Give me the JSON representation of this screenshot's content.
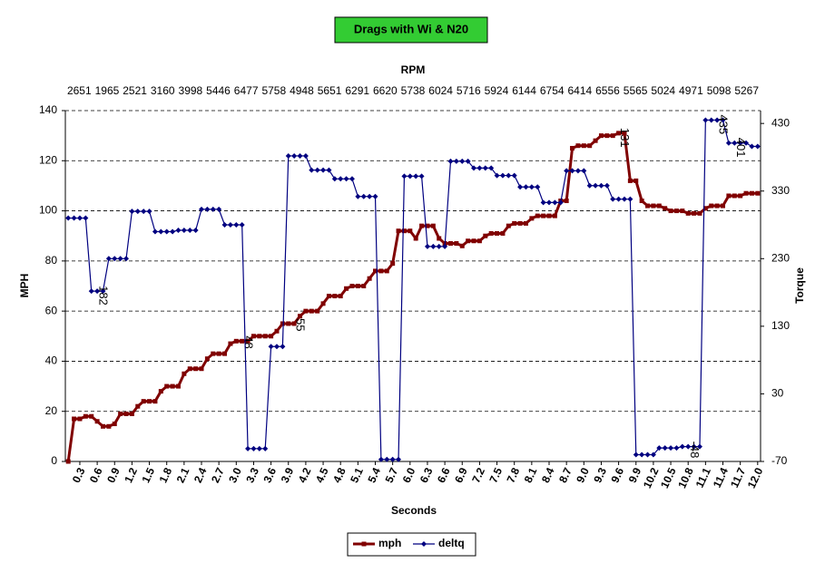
{
  "chart_data": {
    "type": "line",
    "title": "Drags with Wi & N20",
    "x_title": "Seconds",
    "y_title": "MPH",
    "y2_title": "Torque",
    "x2_title": "RPM",
    "x2_categories": [
      2651,
      1965,
      2521,
      3160,
      3998,
      5446,
      6477,
      5758,
      4948,
      5651,
      6291,
      6620,
      5738,
      6024,
      5716,
      5924,
      6144,
      6754,
      6414,
      6556,
      5565,
      5024,
      4971,
      5098,
      5267
    ],
    "categories": [
      null,
      null,
      "0.3",
      null,
      null,
      "0.6",
      null,
      null,
      "0.9",
      null,
      null,
      "1.2",
      null,
      null,
      "1.5",
      null,
      null,
      "1.8",
      null,
      null,
      "2.1",
      null,
      null,
      "2.4",
      null,
      null,
      "2.7",
      null,
      null,
      "3.0",
      null,
      null,
      "3.3",
      null,
      null,
      "3.6",
      null,
      null,
      "3.9",
      null,
      null,
      "4.2",
      null,
      null,
      "4.5",
      null,
      null,
      "4.8",
      null,
      null,
      "5.1",
      null,
      null,
      "5.4",
      null,
      null,
      "5.7",
      null,
      null,
      "6.0",
      null,
      null,
      "6.3",
      null,
      null,
      "6.6",
      null,
      null,
      "6.9",
      null,
      null,
      "7.2",
      null,
      null,
      "7.5",
      null,
      null,
      "7.8",
      null,
      null,
      "8.1",
      null,
      null,
      "8.4",
      null,
      null,
      "8.7",
      null,
      null,
      "9.0",
      null,
      null,
      "9.3",
      null,
      null,
      "9.6",
      null,
      null,
      "9.9",
      null,
      null,
      "10.2",
      null,
      null,
      "10.5",
      null,
      null,
      "10.8",
      null,
      null,
      "11.1",
      null,
      null,
      "11.4",
      null,
      null,
      "11.7",
      null,
      null,
      "12.0"
    ],
    "series": [
      {
        "name": "mph",
        "color": "#800000",
        "marker": "square",
        "values": [
          0,
          17,
          17,
          18,
          18,
          16,
          14,
          14,
          15,
          19,
          19,
          19,
          22,
          24,
          24,
          24,
          28,
          30,
          30,
          30,
          35,
          37,
          37,
          37,
          41,
          43,
          43,
          43,
          47,
          48,
          48,
          48,
          50,
          50,
          50,
          50,
          52,
          55,
          55,
          55,
          58,
          60,
          60,
          60,
          63,
          66,
          66,
          66,
          69,
          70,
          70,
          70,
          73,
          76,
          76,
          76,
          79,
          92,
          92,
          92,
          89,
          94,
          94,
          94,
          89,
          87,
          87,
          87,
          86,
          88,
          88,
          88,
          90,
          91,
          91,
          91,
          94,
          95,
          95,
          95,
          97,
          98,
          98,
          98,
          98,
          104,
          104,
          125,
          126,
          126,
          126,
          128,
          130,
          130,
          130,
          131,
          131,
          112,
          112,
          104,
          102,
          102,
          102,
          101,
          100,
          100,
          100,
          99,
          99,
          99,
          101,
          102,
          102,
          102,
          106,
          106,
          106,
          107,
          107,
          107
        ]
      },
      {
        "name": "deltq",
        "color": "#000080",
        "marker": "diamond",
        "axis": "y2",
        "values": [
          290,
          290,
          290,
          290,
          182,
          182,
          182,
          230,
          230,
          230,
          230,
          300,
          300,
          300,
          300,
          270,
          270,
          270,
          270,
          272,
          272,
          272,
          272,
          303,
          303,
          303,
          303,
          280,
          280,
          280,
          280,
          -51,
          -51,
          -51,
          -51,
          100,
          100,
          100,
          382,
          382,
          382,
          382,
          361,
          361,
          361,
          361,
          348,
          348,
          348,
          348,
          322,
          322,
          322,
          322,
          -67,
          -67,
          -67,
          -67,
          352,
          352,
          352,
          352,
          248,
          248,
          248,
          248,
          374,
          374,
          374,
          374,
          364,
          364,
          364,
          364,
          353,
          353,
          353,
          353,
          336,
          336,
          336,
          336,
          313,
          313,
          313,
          313,
          360,
          360,
          360,
          360,
          338,
          338,
          338,
          338,
          318,
          318,
          318,
          318,
          -60,
          -60,
          -60,
          -60,
          -50,
          -50,
          -50,
          -50,
          -48,
          -48,
          -48,
          -48,
          435,
          435,
          435,
          435,
          401,
          401,
          401,
          401,
          396,
          396
        ]
      }
    ],
    "ylim": [
      0,
      140
    ],
    "yticks": [
      0,
      20,
      40,
      60,
      80,
      100,
      120,
      140
    ],
    "y2lim": [
      -70,
      449
    ],
    "y2ticks": [
      -70,
      30,
      130,
      230,
      330,
      430
    ],
    "grid": true,
    "legend": "bottom"
  }
}
